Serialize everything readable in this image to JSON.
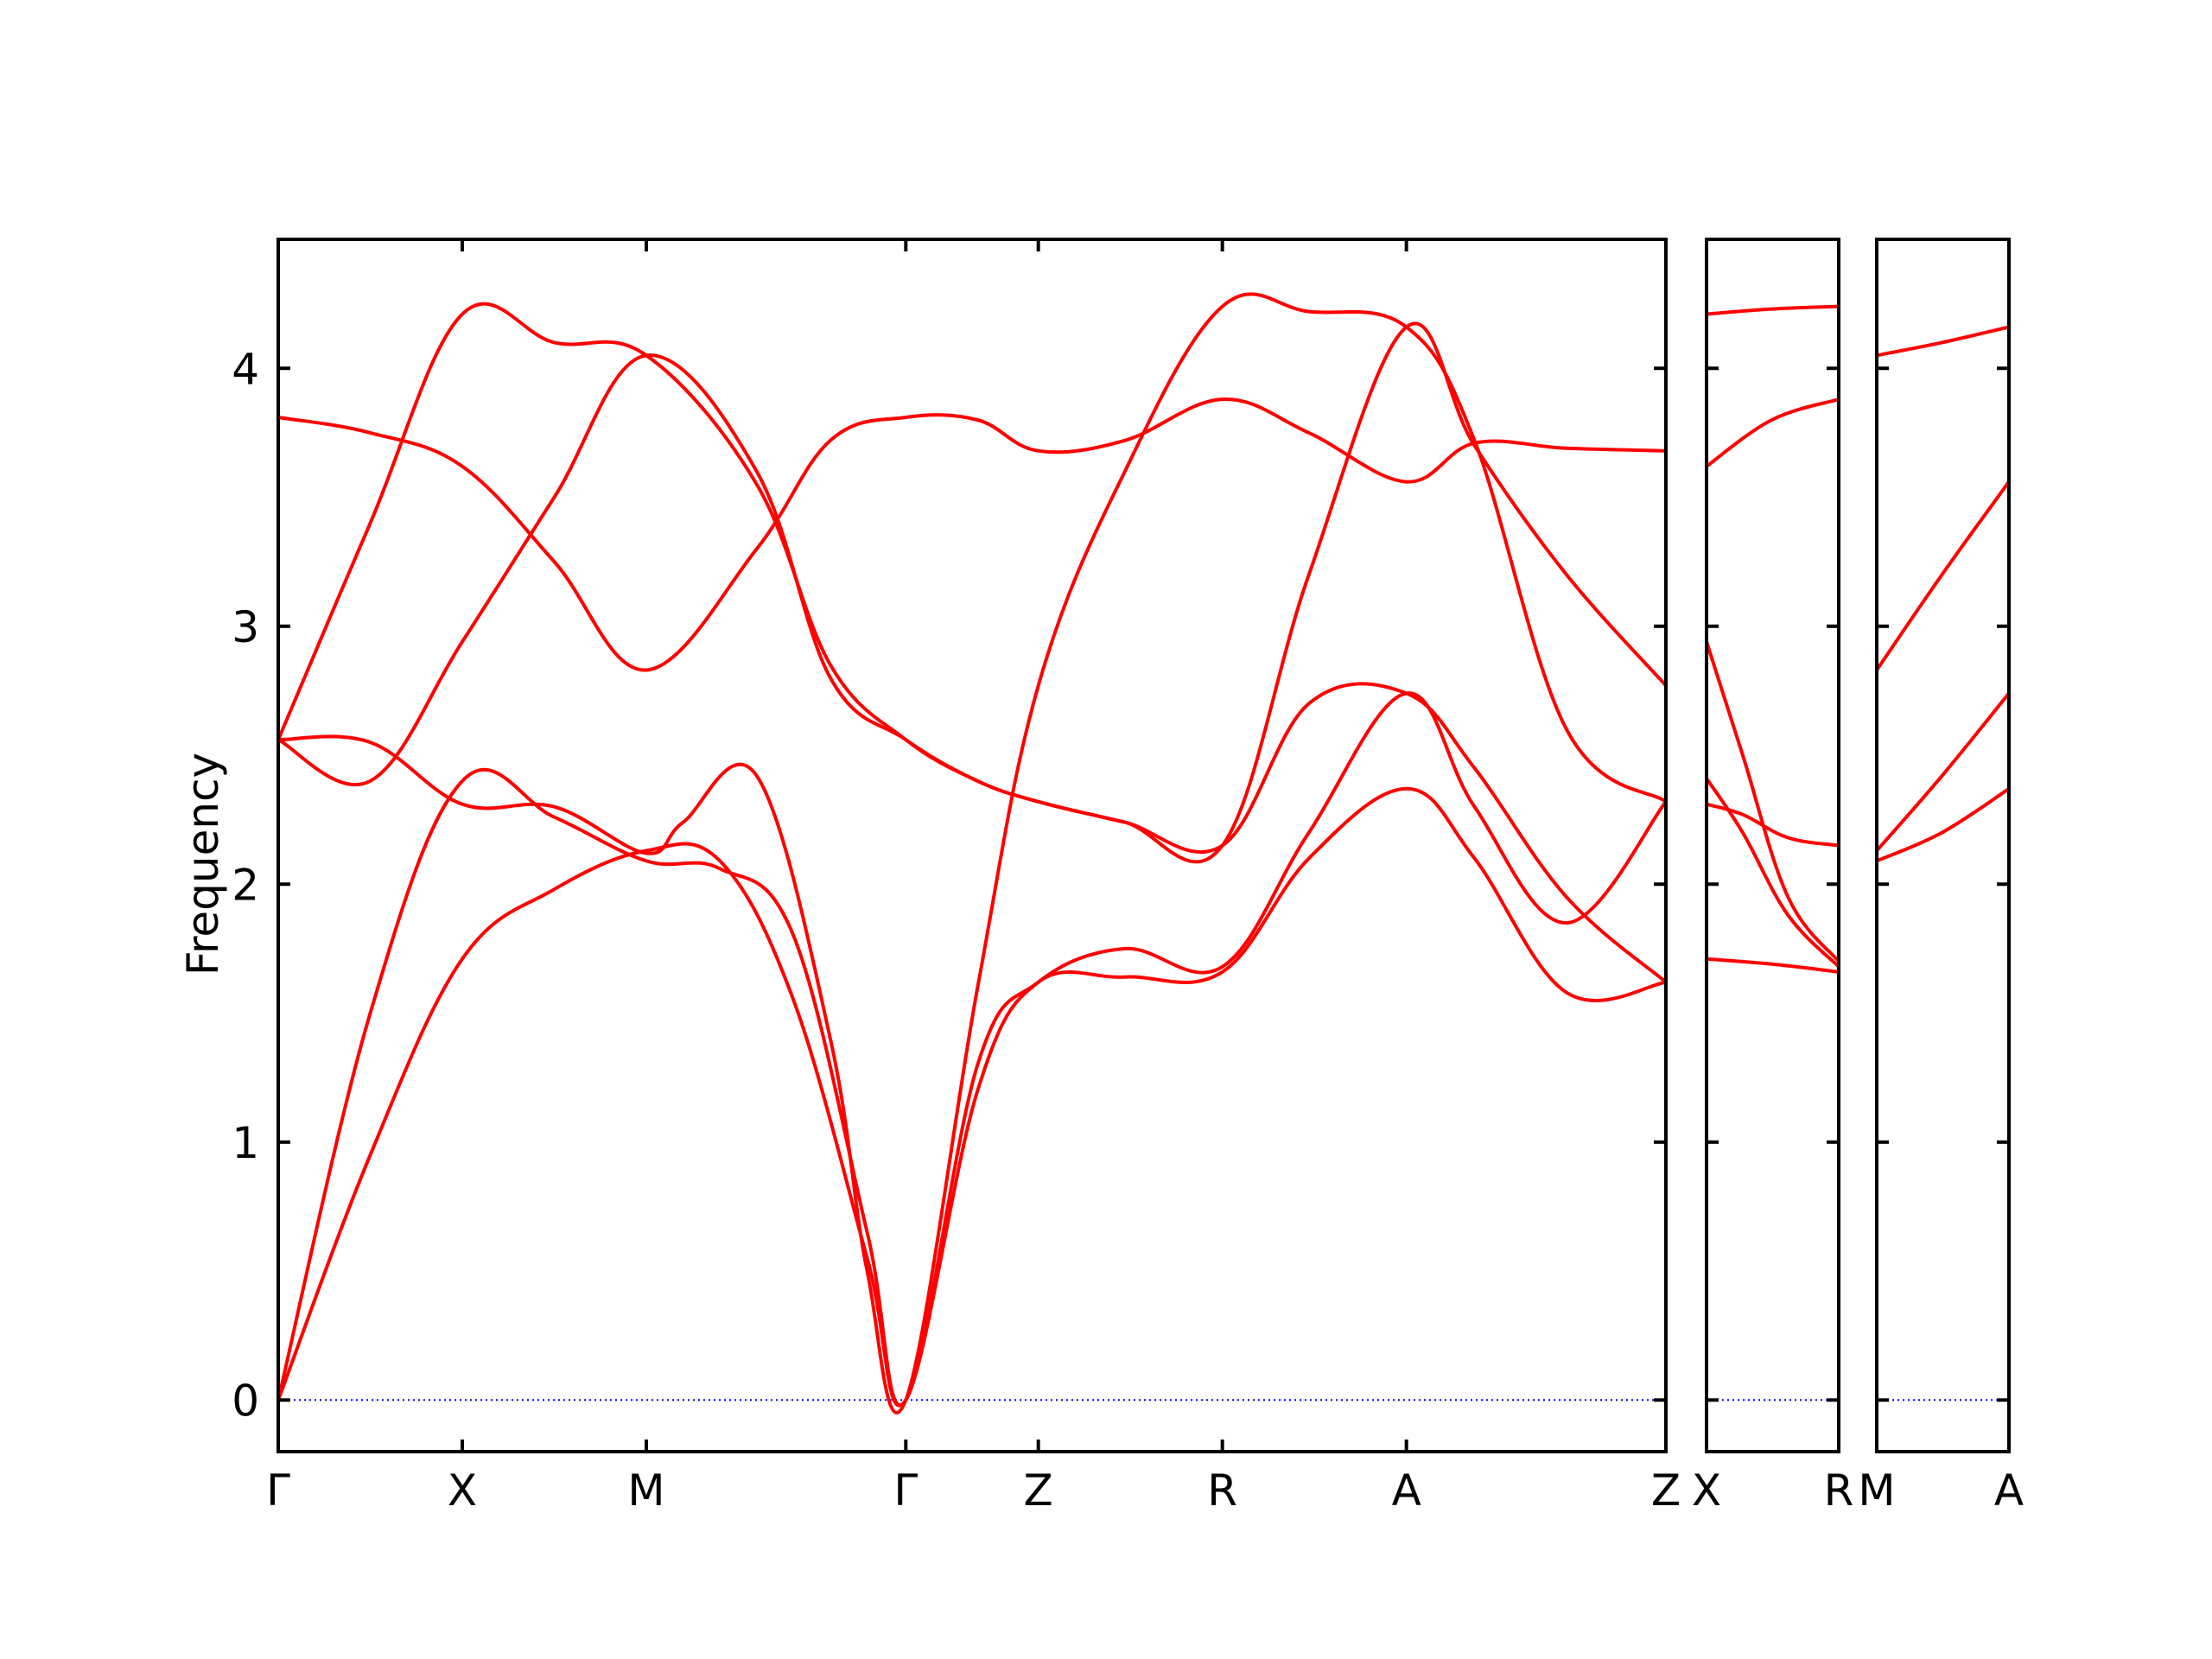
{
  "chart_data": {
    "type": "line",
    "ylabel": "Frequency",
    "ylim": [
      -0.2,
      4.5
    ],
    "yticks": [
      0,
      1,
      2,
      3,
      4
    ],
    "colors": {
      "bands": "#ff0000",
      "zero_line": "#0000ff"
    },
    "grid": false,
    "panels": [
      {
        "xticks": [
          {
            "label": "Γ",
            "x": 0.0
          },
          {
            "label": "X",
            "x": 1.0
          },
          {
            "label": "M",
            "x": 2.0
          },
          {
            "label": "Γ",
            "x": 3.41
          },
          {
            "label": "Z",
            "x": 4.13
          },
          {
            "label": "R",
            "x": 5.13
          },
          {
            "label": "A",
            "x": 6.13
          },
          {
            "label": "Z",
            "x": 7.54
          }
        ],
        "series": [
          {
            "x": [
              0,
              0.5,
              1,
              1.5,
              2,
              2.4,
              2.8,
              3.2,
              3.41,
              3.8,
              4.13,
              4.6,
              5.13,
              5.6,
              6.13,
              6.5,
              7.0,
              7.54
            ],
            "y": [
              0,
              0.95,
              1.71,
              1.98,
              2.13,
              2.09,
              1.55,
              0.55,
              0,
              1.2,
              1.62,
              1.64,
              1.66,
              2.1,
              2.37,
              2.1,
              1.58,
              1.62
            ]
          },
          {
            "x": [
              0,
              0.5,
              1,
              1.5,
              2,
              2.4,
              2.8,
              3.2,
              3.41,
              3.8,
              4.13,
              4.6,
              5.13,
              5.6,
              6.13,
              6.5,
              7.0,
              7.54
            ],
            "y": [
              0,
              1.5,
              2.4,
              2.26,
              2.09,
              2.06,
              1.8,
              0.65,
              0,
              1.3,
              1.62,
              1.75,
              1.68,
              2.2,
              2.74,
              2.3,
              1.85,
              2.32
            ]
          },
          {
            "x": [
              0,
              0.5,
              1,
              1.5,
              2,
              2.2,
              2.6,
              3.0,
              3.2,
              3.41,
              3.8,
              4.13,
              4.6,
              5.13,
              5.6,
              6.13,
              6.5,
              7.0,
              7.54
            ],
            "y": [
              2.56,
              2.55,
              2.31,
              2.3,
              2.12,
              2.24,
              2.42,
              1.4,
              0.5,
              0,
              1.6,
              2.77,
              3.6,
              4.24,
              4.22,
              4.16,
              3.72,
              2.6,
              2.32
            ]
          },
          {
            "x": [
              0,
              0.5,
              1,
              1.5,
              2,
              2.6,
              3.0,
              3.41,
              3.8,
              4.13,
              4.6,
              5.13,
              5.6,
              6.13,
              6.5,
              7.0,
              7.54
            ],
            "y": [
              2.56,
              2.4,
              2.94,
              3.5,
              4.05,
              3.6,
              2.8,
              2.56,
              2.4,
              2.32,
              2.24,
              2.15,
              2.7,
              2.74,
              2.45,
              1.95,
              1.62
            ]
          },
          {
            "x": [
              0,
              0.5,
              1,
              1.5,
              2,
              2.6,
              3.0,
              3.41,
              3.8,
              4.13,
              4.6,
              5.13,
              5.6,
              6.13,
              6.5,
              7.0,
              7.54
            ],
            "y": [
              2.56,
              3.4,
              4.21,
              4.1,
              4.05,
              3.55,
              2.85,
              2.56,
              2.4,
              2.32,
              2.24,
              2.15,
              3.2,
              4.16,
              3.7,
              3.2,
              2.77
            ]
          },
          {
            "x": [
              0,
              0.5,
              1,
              1.5,
              2,
              2.6,
              3.0,
              3.41,
              3.8,
              4.13,
              4.6,
              5.13,
              5.6,
              6.13,
              6.5,
              7.0,
              7.54
            ],
            "y": [
              3.81,
              3.75,
              3.62,
              3.25,
              2.83,
              3.3,
              3.72,
              3.81,
              3.8,
              3.68,
              3.72,
              3.88,
              3.75,
              3.56,
              3.71,
              3.69,
              3.68
            ]
          }
        ]
      },
      {
        "xticks": [
          {
            "label": "X",
            "x": 0.0
          },
          {
            "label": "R",
            "x": 0.73
          }
        ],
        "series": [
          {
            "x": [
              0,
              0.36,
              0.73
            ],
            "y": [
              1.71,
              1.69,
              1.66
            ]
          },
          {
            "x": [
              0,
              0.2,
              0.45,
              0.73
            ],
            "y": [
              2.31,
              2.27,
              2.18,
              2.15
            ]
          },
          {
            "x": [
              0,
              0.2,
              0.45,
              0.73
            ],
            "y": [
              2.41,
              2.2,
              1.88,
              1.68
            ]
          },
          {
            "x": [
              0,
              0.2,
              0.45,
              0.73
            ],
            "y": [
              2.94,
              2.5,
              1.95,
              1.7
            ]
          },
          {
            "x": [
              0,
              0.36,
              0.73
            ],
            "y": [
              3.62,
              3.8,
              3.88
            ]
          },
          {
            "x": [
              0,
              0.36,
              0.73
            ],
            "y": [
              4.21,
              4.23,
              4.24
            ]
          }
        ]
      },
      {
        "xticks": [
          {
            "label": "M",
            "x": 0.0
          },
          {
            "label": "A",
            "x": 0.73
          }
        ],
        "series": [
          {
            "x": [
              0,
              0.36,
              0.73
            ],
            "y": [
              2.09,
              2.2,
              2.37
            ]
          },
          {
            "x": [
              0,
              0.36,
              0.73
            ],
            "y": [
              2.13,
              2.42,
              2.74
            ]
          },
          {
            "x": [
              0,
              0.36,
              0.73
            ],
            "y": [
              2.83,
              3.2,
              3.56
            ]
          },
          {
            "x": [
              0,
              0.36,
              0.73
            ],
            "y": [
              4.05,
              4.1,
              4.16
            ]
          }
        ]
      }
    ]
  }
}
